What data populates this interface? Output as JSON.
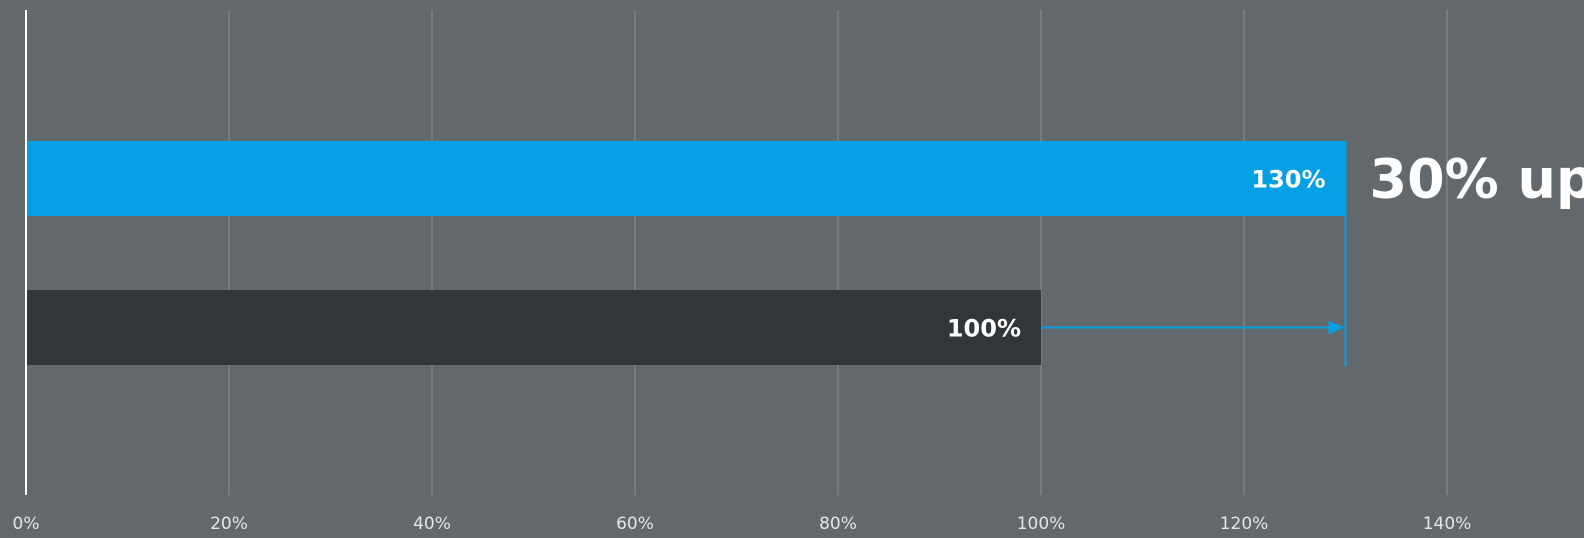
{
  "chart_data": {
    "type": "bar",
    "orientation": "horizontal",
    "categories": [
      "",
      ""
    ],
    "values": [
      130,
      100
    ],
    "value_labels": [
      "130%",
      "100%"
    ],
    "bar_colors": [
      "#03a0e6",
      "#31363a"
    ],
    "xlim": [
      0,
      150
    ],
    "x_ticks": [
      0,
      20,
      40,
      60,
      80,
      100,
      120,
      140
    ],
    "x_tick_labels": [
      "0%",
      "20%",
      "40%",
      "60%",
      "80%",
      "100%",
      "120%",
      "140%"
    ],
    "grid": true,
    "legend": "none",
    "annotation": {
      "text": "30% up",
      "from": 100,
      "to": 130,
      "color": "#03a0e6"
    },
    "background_color": "#62686c",
    "grid_color": "#8a9094"
  }
}
